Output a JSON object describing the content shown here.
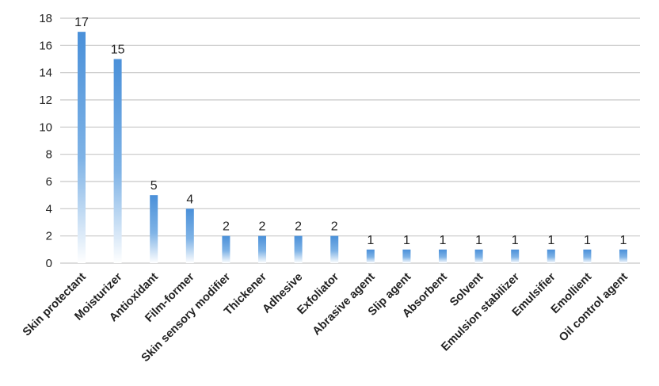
{
  "chart_data": {
    "type": "bar",
    "categories": [
      "Skin protectant",
      "Moisturizer",
      "Antioxidant",
      "Film-former",
      "Skin sensory modifier",
      "Thickener",
      "Adhesive",
      "Exfoliator",
      "Abrasive agent",
      "Slip agent",
      "Absorbent",
      "Solvent",
      "Emulsion stabilizer",
      "Emulsifier",
      "Emollient",
      "Oil control agent"
    ],
    "values": [
      17,
      15,
      5,
      4,
      2,
      2,
      2,
      2,
      1,
      1,
      1,
      1,
      1,
      1,
      1,
      1
    ],
    "ylim": [
      0,
      18
    ],
    "yticks": [
      0,
      2,
      4,
      6,
      8,
      10,
      12,
      14,
      16,
      18
    ],
    "grid": true,
    "legend": "none",
    "colors": {
      "bar_top": "#4a90d9",
      "bar_bottom": "#ffffff",
      "grid": "#c8c8c8"
    }
  }
}
